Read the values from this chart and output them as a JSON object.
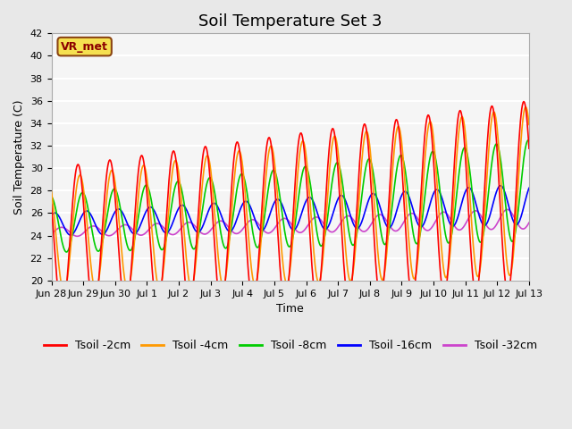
{
  "title": "Soil Temperature Set 3",
  "xlabel": "Time",
  "ylabel": "Soil Temperature (C)",
  "ylim": [
    20,
    42
  ],
  "series_colors": {
    "Tsoil -2cm": "#ff0000",
    "Tsoil -4cm": "#ff9900",
    "Tsoil -8cm": "#00cc00",
    "Tsoil -16cm": "#0000ff",
    "Tsoil -32cm": "#cc44cc"
  },
  "series_labels": [
    "Tsoil -2cm",
    "Tsoil -4cm",
    "Tsoil -8cm",
    "Tsoil -16cm",
    "Tsoil -32cm"
  ],
  "x_tick_labels": [
    "Jun 28",
    "Jun 29",
    "Jun 30",
    "Jul 1",
    "Jul 2",
    "Jul 3",
    "Jul 4",
    "Jul 5",
    "Jul 6",
    "Jul 7",
    "Jul 8",
    "Jul 9",
    "Jul 10",
    "Jul 11",
    "Jul 12",
    "Jul 13"
  ],
  "x_tick_positions": [
    0,
    1,
    2,
    3,
    4,
    5,
    6,
    7,
    8,
    9,
    10,
    11,
    12,
    13,
    14,
    15
  ],
  "watermark": "VR_met",
  "bg_color": "#e8e8e8",
  "plot_bg_color": "#f5f5f5",
  "grid_color": "#ffffff",
  "title_fontsize": 13,
  "axis_label_fontsize": 9,
  "tick_fontsize": 8,
  "legend_fontsize": 9
}
